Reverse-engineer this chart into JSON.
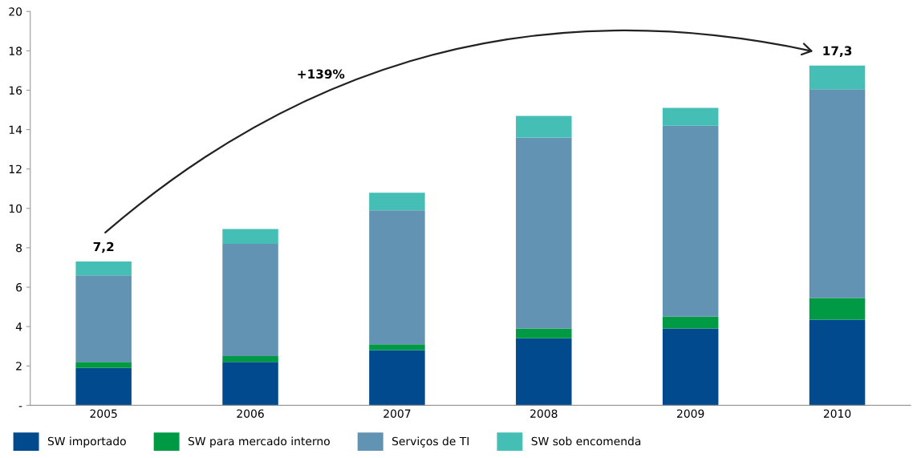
{
  "chart_data": {
    "type": "bar",
    "stacked": true,
    "categories": [
      "2005",
      "2006",
      "2007",
      "2008",
      "2009",
      "2010"
    ],
    "series": [
      {
        "name": "SW importado",
        "color": "#004a8d",
        "values": [
          1.9,
          2.2,
          2.8,
          3.4,
          3.9,
          4.35
        ]
      },
      {
        "name": "SW para mercado interno",
        "color": "#009a44",
        "values": [
          0.3,
          0.3,
          0.3,
          0.5,
          0.6,
          1.1
        ]
      },
      {
        "name": "Serviços de TI",
        "color": "#6393b3",
        "values": [
          4.4,
          5.7,
          6.8,
          9.7,
          9.7,
          10.6
        ]
      },
      {
        "name": "SW sob encomenda",
        "color": "#45bfb5",
        "values": [
          0.7,
          0.75,
          0.9,
          1.1,
          0.9,
          1.2
        ]
      }
    ],
    "ylim": [
      0,
      20
    ],
    "yticks": [
      {
        "value": 0,
        "label": "-"
      },
      2,
      4,
      6,
      8,
      10,
      12,
      14,
      16,
      18,
      20
    ],
    "grid": false,
    "legend": "bottom",
    "annotations": [
      "7,2",
      "17,3",
      "+139%"
    ]
  }
}
